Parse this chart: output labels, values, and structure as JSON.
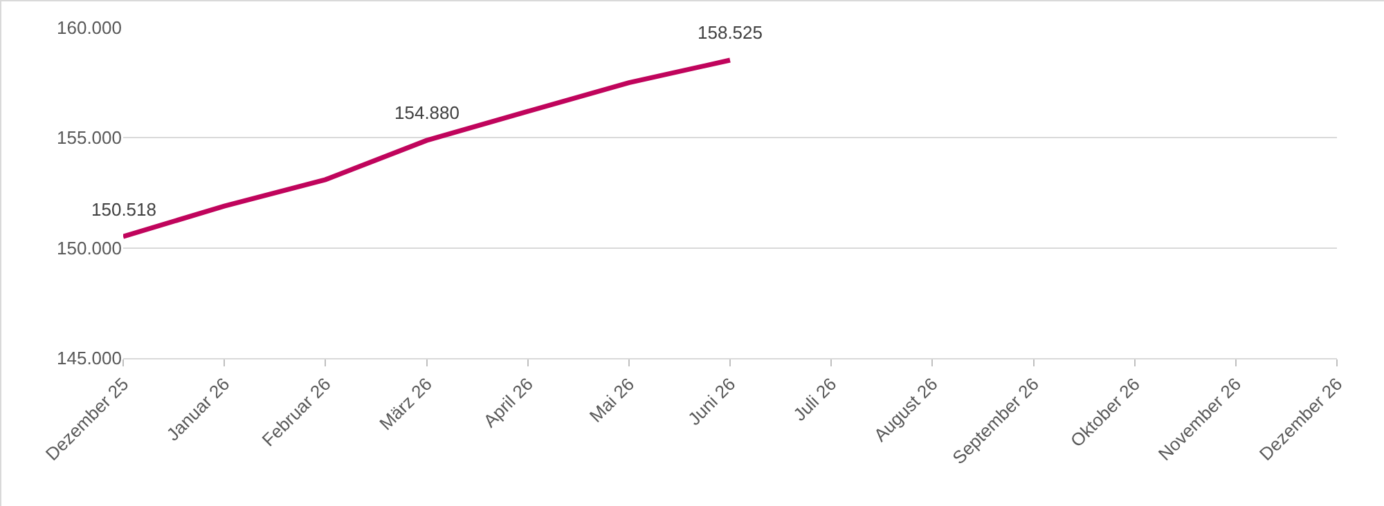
{
  "chart_data": {
    "type": "line",
    "categories": [
      "Dezember 25",
      "Januar 26",
      "Februar 26",
      "März 26",
      "April 26",
      "Mai 26",
      "Juni 26",
      "Juli 26",
      "August 26",
      "September 26",
      "Oktober 26",
      "November 26",
      "Dezember 26"
    ],
    "series": [
      {
        "color": "#c0045c",
        "values": [
          150518,
          151900,
          153100,
          154880,
          156200,
          157500,
          158525,
          null,
          null,
          null,
          null,
          null,
          null
        ],
        "value_labels": [
          "150.518",
          null,
          null,
          "154.880",
          null,
          null,
          "158.525",
          null,
          null,
          null,
          null,
          null,
          null
        ]
      }
    ],
    "ylim": [
      145000,
      160000
    ],
    "yticks": [
      {
        "value": 145000,
        "label": "145.000"
      },
      {
        "value": 150000,
        "label": "150.000"
      },
      {
        "value": 155000,
        "label": "155.000"
      },
      {
        "value": 160000,
        "label": "160.000"
      }
    ],
    "grid": "y",
    "legend": false,
    "marker": "none",
    "line_style": "solid"
  }
}
